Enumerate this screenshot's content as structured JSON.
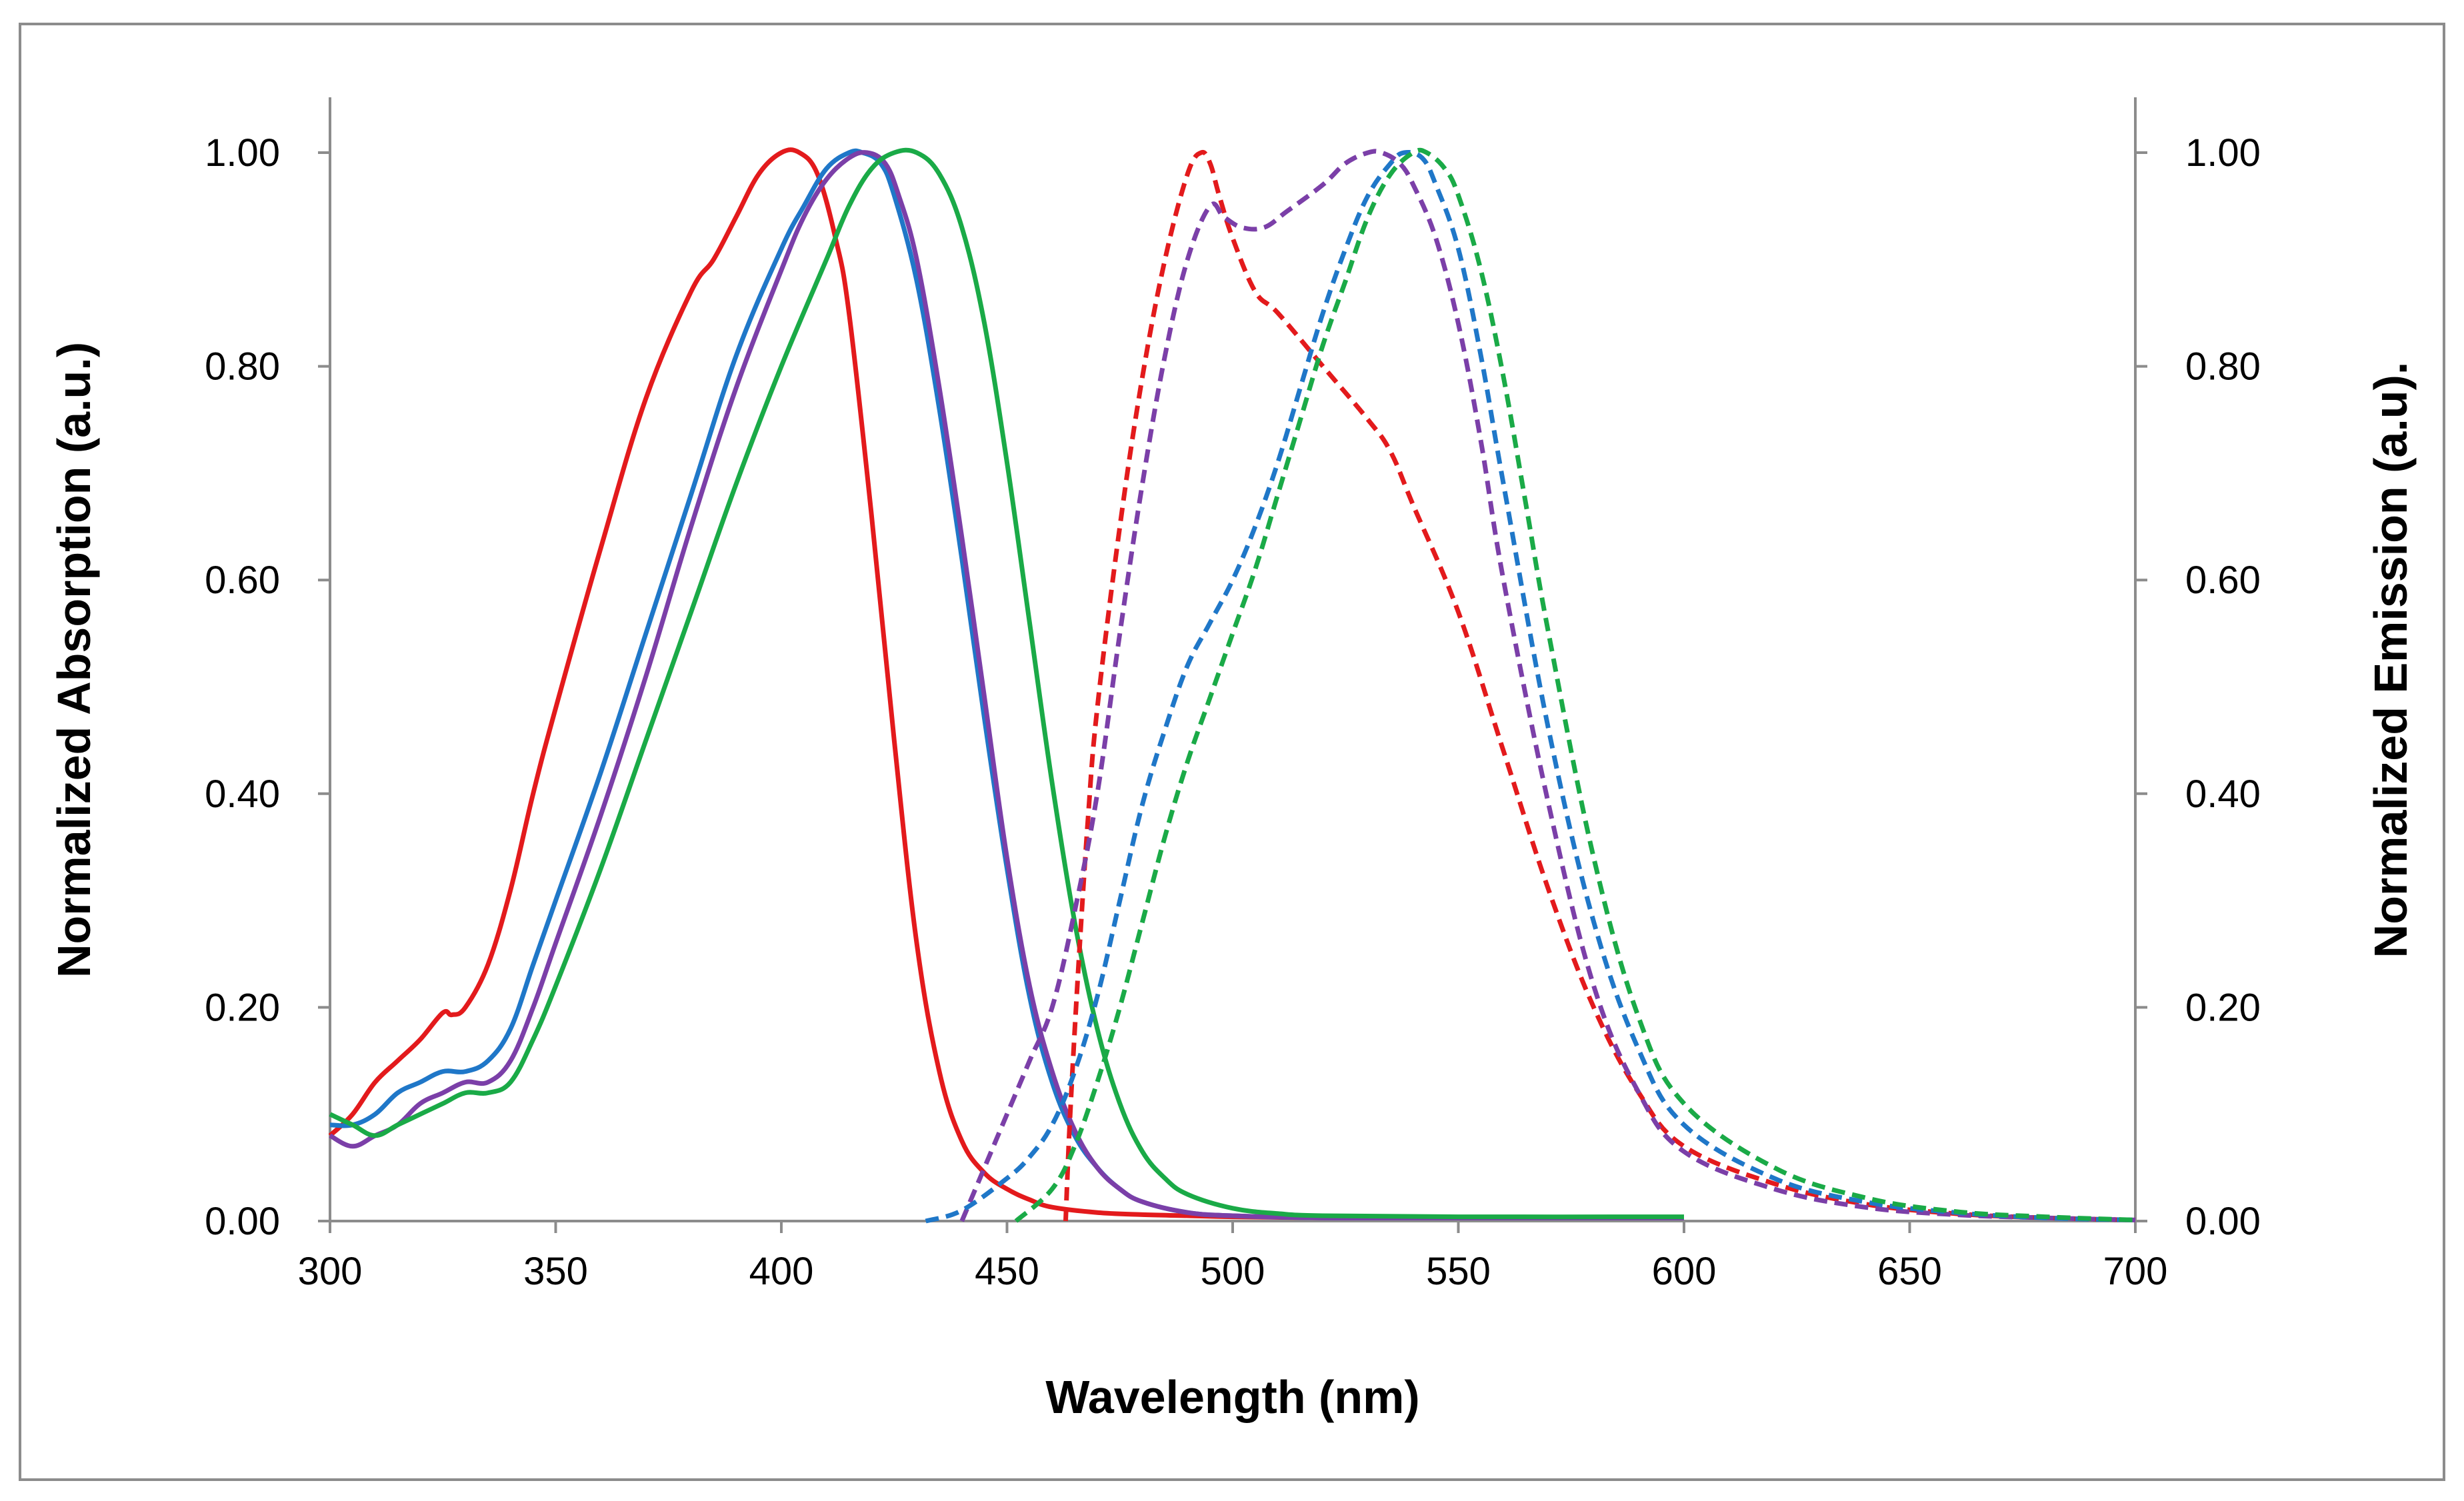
{
  "chart_data": {
    "type": "line",
    "title": "",
    "xlabel": "Wavelength (nm)",
    "ylabel": "Normalized Absorption (a.u.)",
    "ylabel_right": "Normalized Emission (a.u).",
    "xlim": [
      300,
      700
    ],
    "ylim": [
      0,
      1.0
    ],
    "grid": false,
    "legend": "none",
    "x_ticks": [
      "300",
      "350",
      "400",
      "450",
      "500",
      "550",
      "600",
      "650",
      "700"
    ],
    "y_ticks_left": [
      "0.00",
      "0.20",
      "0.40",
      "0.60",
      "0.80",
      "1.00"
    ],
    "y_ticks_right": [
      "0.00",
      "0.20",
      "0.40",
      "0.60",
      "0.80",
      "1.00"
    ],
    "series": [
      {
        "name": "red absorption",
        "kind": "absorption",
        "color": "#e31a1c",
        "dash": "solid",
        "x": [
          300,
          305,
          310,
          315,
          320,
          325,
          327,
          330,
          335,
          340,
          345,
          350,
          360,
          370,
          380,
          385,
          390,
          395,
          400,
          404,
          408,
          412,
          415,
          420,
          425,
          430,
          435,
          440,
          445,
          450,
          455,
          460,
          470,
          480,
          490,
          500,
          520,
          550,
          600
        ],
        "y": [
          0.08,
          0.1,
          0.13,
          0.15,
          0.17,
          0.195,
          0.193,
          0.2,
          0.24,
          0.31,
          0.4,
          0.48,
          0.63,
          0.77,
          0.87,
          0.9,
          0.94,
          0.98,
          1.0,
          1.0,
          0.98,
          0.92,
          0.85,
          0.66,
          0.45,
          0.26,
          0.14,
          0.075,
          0.045,
          0.03,
          0.02,
          0.013,
          0.008,
          0.006,
          0.005,
          0.004,
          0.003,
          0.003,
          0.003
        ]
      },
      {
        "name": "blue absorption",
        "kind": "absorption",
        "color": "#1f77c8",
        "dash": "solid",
        "x": [
          300,
          305,
          310,
          315,
          320,
          325,
          330,
          335,
          340,
          345,
          350,
          360,
          370,
          380,
          390,
          400,
          405,
          410,
          415,
          418,
          422,
          425,
          430,
          435,
          440,
          445,
          450,
          455,
          460,
          465,
          470,
          475,
          480,
          490,
          500,
          520,
          550,
          600
        ],
        "y": [
          0.09,
          0.09,
          0.1,
          0.12,
          0.13,
          0.14,
          0.14,
          0.15,
          0.18,
          0.24,
          0.3,
          0.42,
          0.55,
          0.68,
          0.81,
          0.91,
          0.95,
          0.985,
          1.0,
          1.0,
          0.99,
          0.96,
          0.88,
          0.76,
          0.62,
          0.47,
          0.33,
          0.21,
          0.13,
          0.08,
          0.05,
          0.03,
          0.018,
          0.008,
          0.005,
          0.003,
          0.003,
          0.003
        ]
      },
      {
        "name": "purple absorption",
        "kind": "absorption",
        "color": "#7b3fa8",
        "dash": "solid",
        "x": [
          300,
          305,
          310,
          315,
          320,
          325,
          330,
          335,
          340,
          345,
          350,
          360,
          370,
          380,
          390,
          400,
          405,
          410,
          415,
          419,
          423,
          426,
          430,
          435,
          440,
          445,
          450,
          455,
          460,
          465,
          470,
          475,
          480,
          490,
          500,
          520,
          550,
          600
        ],
        "y": [
          0.08,
          0.07,
          0.08,
          0.09,
          0.11,
          0.12,
          0.13,
          0.13,
          0.15,
          0.2,
          0.26,
          0.38,
          0.51,
          0.65,
          0.78,
          0.89,
          0.94,
          0.975,
          0.995,
          1.0,
          0.99,
          0.96,
          0.9,
          0.78,
          0.64,
          0.49,
          0.34,
          0.22,
          0.14,
          0.085,
          0.05,
          0.03,
          0.018,
          0.008,
          0.005,
          0.003,
          0.003,
          0.003
        ]
      },
      {
        "name": "green absorption",
        "kind": "absorption",
        "color": "#1aaa47",
        "dash": "solid",
        "x": [
          300,
          305,
          310,
          315,
          320,
          325,
          330,
          335,
          340,
          345,
          350,
          360,
          370,
          380,
          390,
          400,
          410,
          415,
          420,
          425,
          430,
          435,
          440,
          445,
          450,
          455,
          460,
          465,
          470,
          475,
          480,
          485,
          490,
          500,
          510,
          520,
          550,
          600
        ],
        "y": [
          0.1,
          0.09,
          0.08,
          0.09,
          0.1,
          0.11,
          0.12,
          0.12,
          0.13,
          0.17,
          0.22,
          0.33,
          0.45,
          0.57,
          0.69,
          0.8,
          0.9,
          0.95,
          0.985,
          1.0,
          1.0,
          0.98,
          0.93,
          0.84,
          0.71,
          0.56,
          0.41,
          0.28,
          0.18,
          0.11,
          0.065,
          0.04,
          0.025,
          0.012,
          0.007,
          0.005,
          0.004,
          0.004
        ]
      },
      {
        "name": "red emission",
        "kind": "emission",
        "color": "#e31a1c",
        "dash": "dashed",
        "x": [
          463,
          464,
          466,
          468,
          470,
          475,
          480,
          485,
          490,
          493,
          495,
          497,
          500,
          505,
          510,
          520,
          530,
          535,
          540,
          550,
          560,
          570,
          580,
          590,
          600,
          620,
          640,
          660,
          680,
          700
        ],
        "y": [
          0.0,
          0.1,
          0.25,
          0.38,
          0.48,
          0.65,
          0.79,
          0.9,
          0.98,
          1.0,
          0.99,
          0.96,
          0.92,
          0.87,
          0.85,
          0.8,
          0.75,
          0.72,
          0.67,
          0.57,
          0.44,
          0.31,
          0.2,
          0.12,
          0.07,
          0.035,
          0.016,
          0.007,
          0.003,
          0.001
        ]
      },
      {
        "name": "purple emission",
        "kind": "emission",
        "color": "#7b3fa8",
        "dash": "dashed",
        "x": [
          440,
          445,
          450,
          455,
          460,
          465,
          470,
          475,
          480,
          485,
          490,
          495,
          498,
          502,
          507,
          512,
          520,
          525,
          530,
          533,
          537,
          540,
          545,
          550,
          555,
          560,
          570,
          580,
          590,
          600,
          620,
          640,
          660,
          680,
          700
        ],
        "y": [
          0.0,
          0.05,
          0.1,
          0.15,
          0.2,
          0.29,
          0.4,
          0.55,
          0.69,
          0.81,
          0.9,
          0.95,
          0.94,
          0.93,
          0.93,
          0.945,
          0.97,
          0.99,
          1.0,
          1.0,
          0.99,
          0.97,
          0.92,
          0.84,
          0.73,
          0.6,
          0.39,
          0.22,
          0.12,
          0.065,
          0.03,
          0.013,
          0.006,
          0.003,
          0.001
        ]
      },
      {
        "name": "blue emission",
        "kind": "emission",
        "color": "#1f77c8",
        "dash": "dashed",
        "x": [
          432,
          440,
          450,
          455,
          460,
          465,
          470,
          475,
          480,
          485,
          490,
          495,
          500,
          505,
          510,
          515,
          520,
          525,
          530,
          535,
          538,
          542,
          545,
          550,
          555,
          560,
          570,
          580,
          590,
          600,
          620,
          640,
          660,
          680,
          700
        ],
        "y": [
          0.0,
          0.01,
          0.04,
          0.06,
          0.09,
          0.14,
          0.21,
          0.3,
          0.39,
          0.46,
          0.52,
          0.56,
          0.6,
          0.65,
          0.71,
          0.78,
          0.85,
          0.91,
          0.96,
          0.99,
          1.0,
          0.995,
          0.97,
          0.91,
          0.81,
          0.69,
          0.46,
          0.28,
          0.16,
          0.09,
          0.04,
          0.018,
          0.008,
          0.003,
          0.001
        ]
      },
      {
        "name": "green emission",
        "kind": "emission",
        "color": "#1aaa47",
        "dash": "dashed",
        "x": [
          452,
          460,
          465,
          470,
          475,
          480,
          485,
          490,
          495,
          500,
          505,
          510,
          515,
          520,
          525,
          530,
          535,
          540,
          543,
          547,
          550,
          555,
          560,
          565,
          570,
          580,
          590,
          600,
          620,
          640,
          660,
          680,
          700
        ],
        "y": [
          0.0,
          0.03,
          0.07,
          0.13,
          0.2,
          0.28,
          0.36,
          0.43,
          0.49,
          0.55,
          0.61,
          0.68,
          0.75,
          0.82,
          0.88,
          0.94,
          0.98,
          1.0,
          1.0,
          0.985,
          0.96,
          0.89,
          0.79,
          0.67,
          0.55,
          0.34,
          0.19,
          0.11,
          0.05,
          0.022,
          0.009,
          0.004,
          0.001
        ]
      }
    ]
  }
}
